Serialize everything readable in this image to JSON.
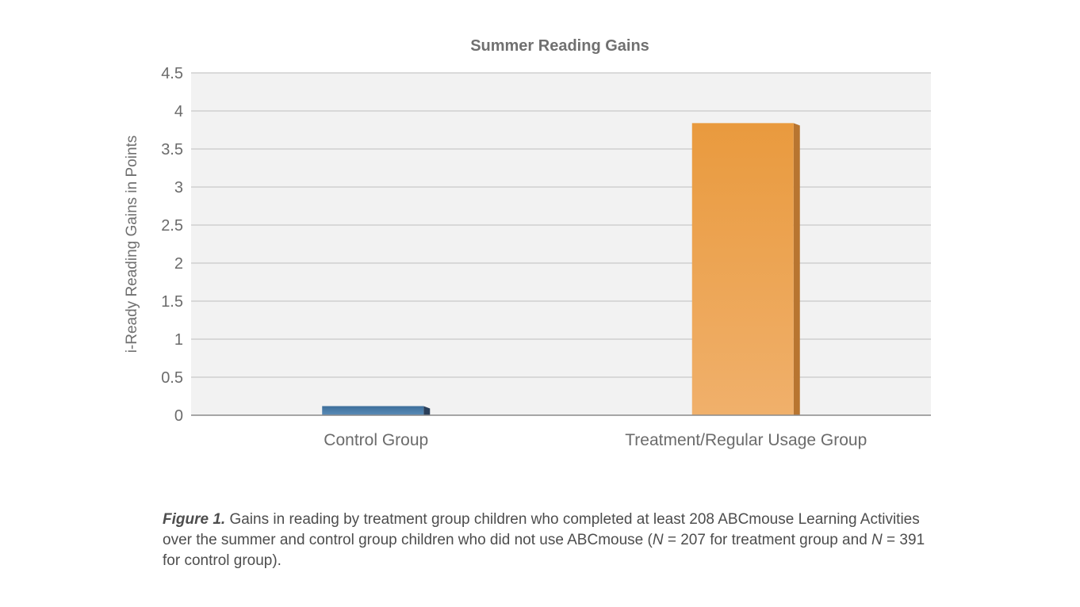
{
  "chart_data": {
    "type": "bar",
    "title": "Summer Reading Gains",
    "ylabel": "i-Ready Reading Gains in Points",
    "xlabel": "",
    "categories": [
      "Control Group",
      "Treatment/Regular Usage Group"
    ],
    "values": [
      0.12,
      3.84
    ],
    "ylim": [
      0,
      4.5
    ],
    "yticks": [
      0,
      0.5,
      1,
      1.5,
      2,
      2.5,
      3,
      3.5,
      4,
      4.5
    ],
    "ytick_labels": [
      "0",
      "0.5",
      "1",
      "1.5",
      "2",
      "2.5",
      "3",
      "3.5",
      "4",
      "4.5"
    ],
    "grid": true,
    "legend": "none",
    "bar_colors": [
      "#3d6e9a",
      "#eda250"
    ],
    "bar_side_colors": [
      "#2a3f5a",
      "#b87530"
    ],
    "plot_background": "#f2f2f2",
    "grid_color": "#c8c8c8"
  },
  "caption": {
    "label": "Figure 1.",
    "part1": " Gains in reading by treatment group children who completed at least 208 ABCmouse Learning Activities over the summer and control group children who did not use ABCmouse (",
    "n_symbol_1": "N",
    "part2": " = 207 for treatment group and ",
    "n_symbol_2": "N",
    "part3": " = 391 for control group)."
  }
}
